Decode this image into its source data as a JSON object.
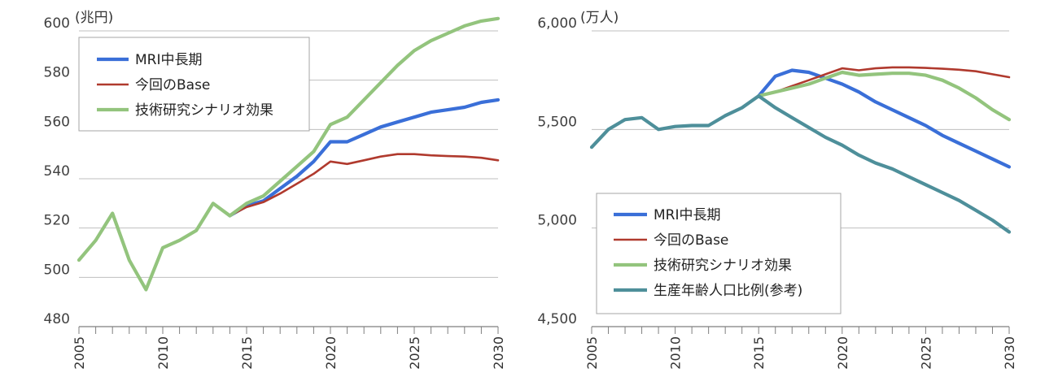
{
  "chart_data": [
    {
      "type": "line",
      "title": "",
      "unit_label": "(兆円)",
      "xlabel": "",
      "ylabel": "",
      "ylim": [
        480,
        600
      ],
      "xlim": [
        2005,
        2030
      ],
      "y_ticks": [
        480,
        500,
        520,
        540,
        560,
        580,
        600
      ],
      "y_tick_labels": [
        "480",
        "500",
        "520",
        "540",
        "560",
        "580",
        "600"
      ],
      "x_tick_labels": [
        "2005",
        "2010",
        "2015",
        "2020",
        "2025",
        "2030"
      ],
      "grid": true,
      "legend_position": "top-left",
      "series": [
        {
          "name": "MRI中長期",
          "color": "#3a6fd8",
          "x": [
            2014,
            2015,
            2016,
            2017,
            2018,
            2019,
            2020,
            2021,
            2022,
            2023,
            2024,
            2025,
            2026,
            2027,
            2028,
            2029,
            2030
          ],
          "y": [
            525,
            529,
            531,
            536,
            541,
            547,
            555,
            555,
            558,
            561,
            563,
            565,
            567,
            568,
            569,
            571,
            572
          ]
        },
        {
          "name": "今回のBase",
          "color": "#b03a2e",
          "x": [
            2014,
            2015,
            2016,
            2017,
            2018,
            2019,
            2020,
            2021,
            2022,
            2023,
            2024,
            2025,
            2026,
            2027,
            2028,
            2029,
            2030
          ],
          "y": [
            525,
            528.5,
            530.5,
            534,
            538,
            542,
            547,
            546,
            547.5,
            549,
            550,
            550,
            549.5,
            549.2,
            549,
            548.5,
            547.5
          ]
        },
        {
          "name": "技術研究シナリオ効果",
          "color": "#93c47d",
          "x": [
            2005,
            2006,
            2007,
            2008,
            2009,
            2010,
            2011,
            2012,
            2013,
            2014,
            2015,
            2016,
            2017,
            2018,
            2019,
            2020,
            2021,
            2022,
            2023,
            2024,
            2025,
            2026,
            2027,
            2028,
            2029,
            2030
          ],
          "y": [
            507,
            515,
            526,
            507,
            495,
            512,
            515,
            519,
            530,
            525,
            530,
            533,
            539,
            545,
            551,
            562,
            565,
            572,
            579,
            586,
            592,
            596,
            599,
            602,
            604,
            605
          ]
        }
      ]
    },
    {
      "type": "line",
      "title": "",
      "unit_label": "(万人)",
      "xlabel": "",
      "ylabel": "",
      "ylim": [
        4500,
        6000
      ],
      "xlim": [
        2005,
        2030
      ],
      "y_ticks": [
        4500,
        5000,
        5500,
        6000
      ],
      "y_tick_labels": [
        "4,500",
        "5,000",
        "5,500",
        "6,000"
      ],
      "x_tick_labels": [
        "2005",
        "2010",
        "2015",
        "2020",
        "2025",
        "2030"
      ],
      "grid": true,
      "legend_position": "bottom-center",
      "series": [
        {
          "name": "MRI中長期",
          "color": "#3a6fd8",
          "x": [
            2015,
            2016,
            2017,
            2018,
            2019,
            2020,
            2021,
            2022,
            2023,
            2024,
            2025,
            2026,
            2027,
            2028,
            2029,
            2030
          ],
          "y": [
            5670,
            5770,
            5800,
            5790,
            5760,
            5730,
            5690,
            5640,
            5600,
            5560,
            5520,
            5470,
            5430,
            5390,
            5350,
            5310
          ]
        },
        {
          "name": "今回のBase",
          "color": "#b03a2e",
          "x": [
            2015,
            2016,
            2017,
            2018,
            2019,
            2020,
            2021,
            2022,
            2023,
            2024,
            2025,
            2026,
            2027,
            2028,
            2029,
            2030
          ],
          "y": [
            5670,
            5690,
            5720,
            5750,
            5780,
            5810,
            5800,
            5810,
            5815,
            5815,
            5812,
            5808,
            5803,
            5795,
            5780,
            5765
          ]
        },
        {
          "name": "技術研究シナリオ効果",
          "color": "#93c47d",
          "x": [
            2015,
            2016,
            2017,
            2018,
            2019,
            2020,
            2021,
            2022,
            2023,
            2024,
            2025,
            2026,
            2027,
            2028,
            2029,
            2030
          ],
          "y": [
            5670,
            5690,
            5710,
            5730,
            5760,
            5790,
            5775,
            5780,
            5785,
            5785,
            5775,
            5750,
            5710,
            5660,
            5600,
            5550
          ]
        },
        {
          "name": "生産年齢人口比例(参考)",
          "color": "#4e8f9a",
          "x": [
            2005,
            2006,
            2007,
            2008,
            2009,
            2010,
            2011,
            2012,
            2013,
            2014,
            2015,
            2016,
            2017,
            2018,
            2019,
            2020,
            2021,
            2022,
            2023,
            2024,
            2025,
            2026,
            2027,
            2028,
            2029,
            2030
          ],
          "y": [
            5410,
            5500,
            5550,
            5560,
            5500,
            5515,
            5520,
            5520,
            5570,
            5610,
            5670,
            5610,
            5560,
            5510,
            5460,
            5420,
            5370,
            5330,
            5300,
            5260,
            5220,
            5180,
            5140,
            5090,
            5040,
            4980
          ]
        }
      ]
    }
  ]
}
